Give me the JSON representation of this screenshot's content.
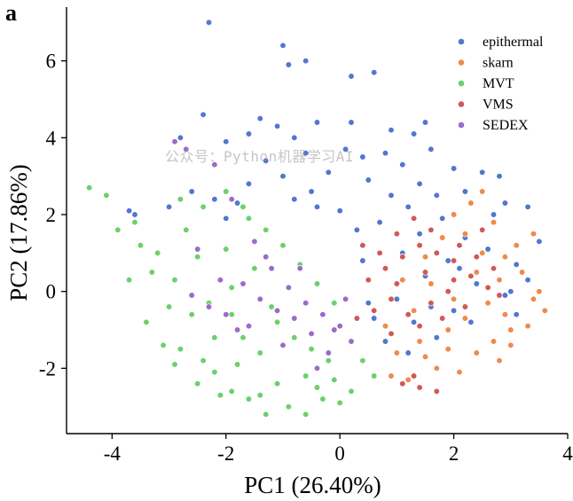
{
  "panel_label": "a",
  "watermark": "公众号：Python机器学习AI",
  "chart_data": {
    "type": "scatter",
    "title": "",
    "xlabel": "PC1 (26.40%)",
    "ylabel": "PC2 (17.86%)",
    "xlim": [
      -4.8,
      4.0
    ],
    "ylim": [
      -3.7,
      7.4
    ],
    "xticks": [
      -4,
      -2,
      0,
      2,
      4
    ],
    "xtick_labels": [
      "-4",
      "-2",
      "0",
      "2",
      "4"
    ],
    "yticks": [
      -2,
      0,
      2,
      4,
      6
    ],
    "ytick_labels": [
      "-2",
      "0",
      "2",
      "4",
      "6"
    ],
    "grid": false,
    "legend_position": "top-right",
    "series": [
      {
        "name": "epithermal",
        "color": "#5078d0",
        "points": [
          [
            -2.3,
            7.0
          ],
          [
            -1.0,
            6.4
          ],
          [
            -0.9,
            5.9
          ],
          [
            -0.6,
            6.0
          ],
          [
            0.2,
            5.6
          ],
          [
            0.6,
            5.7
          ],
          [
            -2.4,
            4.6
          ],
          [
            -1.4,
            4.5
          ],
          [
            -1.1,
            4.3
          ],
          [
            -0.4,
            4.4
          ],
          [
            0.2,
            4.4
          ],
          [
            -2.8,
            4.0
          ],
          [
            -2.0,
            3.9
          ],
          [
            -1.6,
            4.1
          ],
          [
            -0.8,
            4.0
          ],
          [
            0.9,
            4.2
          ],
          [
            1.3,
            4.1
          ],
          [
            1.5,
            4.4
          ],
          [
            -1.3,
            3.4
          ],
          [
            -0.6,
            3.6
          ],
          [
            0.1,
            3.7
          ],
          [
            0.4,
            3.5
          ],
          [
            0.8,
            3.6
          ],
          [
            1.1,
            3.3
          ],
          [
            1.6,
            3.7
          ],
          [
            2.0,
            3.2
          ],
          [
            2.5,
            3.1
          ],
          [
            2.8,
            3.0
          ],
          [
            -0.2,
            3.1
          ],
          [
            -1.0,
            3.0
          ],
          [
            0.5,
            2.9
          ],
          [
            1.4,
            2.8
          ],
          [
            -2.6,
            2.6
          ],
          [
            -2.2,
            2.4
          ],
          [
            -3.0,
            2.2
          ],
          [
            -3.6,
            2.0
          ],
          [
            -3.7,
            2.1
          ],
          [
            -1.8,
            2.3
          ],
          [
            -0.4,
            2.2
          ],
          [
            2.9,
            2.3
          ],
          [
            3.3,
            2.2
          ],
          [
            3.5,
            1.3
          ],
          [
            1.2,
            2.2
          ],
          [
            1.8,
            1.9
          ],
          [
            0.7,
            1.8
          ],
          [
            0.3,
            1.6
          ],
          [
            2.2,
            1.4
          ],
          [
            2.6,
            1.1
          ],
          [
            3.1,
            0.7
          ],
          [
            3.3,
            0.3
          ],
          [
            2.9,
            -0.1
          ],
          [
            3.1,
            -0.6
          ],
          [
            2.3,
            -0.8
          ],
          [
            1.7,
            -1.2
          ],
          [
            1.2,
            -1.6
          ],
          [
            0.8,
            -1.3
          ],
          [
            0.6,
            -0.7
          ],
          [
            1.0,
            -0.2
          ],
          [
            1.5,
            0.4
          ],
          [
            1.9,
            0.8
          ],
          [
            2.4,
            0.2
          ],
          [
            0.4,
            0.8
          ],
          [
            1.1,
            1.0
          ],
          [
            1.6,
            -0.4
          ],
          [
            2.0,
            -0.5
          ],
          [
            -0.5,
            2.6
          ],
          [
            -1.6,
            2.8
          ],
          [
            -2.0,
            1.9
          ],
          [
            0.9,
            2.5
          ],
          [
            1.7,
            2.5
          ],
          [
            2.2,
            2.6
          ],
          [
            0.0,
            2.1
          ],
          [
            -0.8,
            2.4
          ],
          [
            2.7,
            2.0
          ],
          [
            1.3,
            -0.8
          ],
          [
            0.5,
            -0.3
          ],
          [
            2.6,
            -0.3
          ],
          [
            3.0,
            0.0
          ],
          [
            2.1,
            0.6
          ],
          [
            1.4,
            1.5
          ]
        ]
      },
      {
        "name": "skarn",
        "color": "#ef8a4e",
        "points": [
          [
            3.6,
            -0.5
          ],
          [
            3.4,
            -0.2
          ],
          [
            3.2,
            0.5
          ],
          [
            2.9,
            0.9
          ],
          [
            3.0,
            -1.0
          ],
          [
            2.7,
            -1.3
          ],
          [
            2.4,
            -1.6
          ],
          [
            2.1,
            -2.1
          ],
          [
            1.7,
            -2.0
          ],
          [
            1.2,
            -2.3
          ],
          [
            0.9,
            -2.2
          ],
          [
            1.4,
            -1.3
          ],
          [
            1.9,
            -1.0
          ],
          [
            2.2,
            -0.7
          ],
          [
            2.6,
            -0.3
          ],
          [
            2.8,
            0.3
          ],
          [
            2.5,
            1.0
          ],
          [
            2.2,
            1.5
          ],
          [
            1.8,
            1.4
          ],
          [
            1.5,
            0.9
          ],
          [
            1.6,
            0.2
          ],
          [
            2.0,
            -0.2
          ],
          [
            2.9,
            -0.6
          ],
          [
            3.3,
            -0.9
          ],
          [
            3.5,
            0.0
          ],
          [
            2.4,
            0.5
          ],
          [
            1.3,
            -0.5
          ],
          [
            1.1,
            0.3
          ],
          [
            0.8,
            -0.9
          ],
          [
            1.5,
            -1.7
          ],
          [
            2.3,
            2.3
          ],
          [
            2.5,
            2.6
          ],
          [
            2.0,
            2.0
          ],
          [
            3.1,
            1.2
          ],
          [
            3.4,
            1.5
          ],
          [
            2.7,
            1.8
          ],
          [
            1.9,
            -1.5
          ],
          [
            1.0,
            -1.6
          ],
          [
            2.8,
            -1.8
          ],
          [
            3.0,
            -1.4
          ]
        ]
      },
      {
        "name": "MVT",
        "color": "#6cd06c",
        "points": [
          [
            -4.4,
            2.7
          ],
          [
            -4.1,
            2.5
          ],
          [
            -3.9,
            1.6
          ],
          [
            -3.6,
            1.8
          ],
          [
            -3.3,
            0.5
          ],
          [
            -3.0,
            -0.4
          ],
          [
            -2.8,
            -1.5
          ],
          [
            -2.5,
            -2.4
          ],
          [
            -2.2,
            -2.1
          ],
          [
            -1.9,
            -2.6
          ],
          [
            -1.6,
            -2.8
          ],
          [
            -1.3,
            -3.2
          ],
          [
            -0.9,
            -3.0
          ],
          [
            -0.6,
            -3.2
          ],
          [
            -0.3,
            -2.8
          ],
          [
            0.0,
            -2.9
          ],
          [
            0.2,
            -2.6
          ],
          [
            -0.2,
            -1.8
          ],
          [
            -0.6,
            -2.2
          ],
          [
            -1.1,
            -2.4
          ],
          [
            -1.4,
            -1.6
          ],
          [
            -1.8,
            -1.9
          ],
          [
            -2.2,
            -1.2
          ],
          [
            -2.6,
            -0.6
          ],
          [
            -2.9,
            0.3
          ],
          [
            -3.2,
            1.0
          ],
          [
            -2.7,
            1.6
          ],
          [
            -2.4,
            2.2
          ],
          [
            -2.0,
            2.6
          ],
          [
            -1.7,
            2.2
          ],
          [
            -1.3,
            1.6
          ],
          [
            -1.0,
            1.2
          ],
          [
            -0.7,
            0.7
          ],
          [
            -0.4,
            0.2
          ],
          [
            -0.1,
            -0.3
          ],
          [
            -1.5,
            0.6
          ],
          [
            -1.9,
            0.1
          ],
          [
            -2.3,
            -0.3
          ],
          [
            -1.2,
            -0.4
          ],
          [
            -0.8,
            -1.2
          ],
          [
            -2.0,
            1.1
          ],
          [
            -1.6,
            1.9
          ],
          [
            -2.8,
            2.4
          ],
          [
            -3.5,
            1.2
          ],
          [
            -3.7,
            0.3
          ],
          [
            -3.4,
            -0.8
          ],
          [
            -2.9,
            -1.9
          ],
          [
            -2.4,
            -1.8
          ],
          [
            -1.7,
            -1.2
          ],
          [
            -1.1,
            -0.8
          ],
          [
            -0.5,
            -1.5
          ],
          [
            -0.1,
            -2.3
          ],
          [
            0.4,
            -1.8
          ],
          [
            0.6,
            -2.2
          ],
          [
            -3.1,
            -1.4
          ],
          [
            -2.1,
            -2.7
          ],
          [
            -1.4,
            -2.7
          ],
          [
            -0.4,
            -2.5
          ],
          [
            -2.5,
            0.9
          ],
          [
            -1.9,
            -0.6
          ]
        ]
      },
      {
        "name": "VMS",
        "color": "#d35858",
        "points": [
          [
            0.5,
            0.3
          ],
          [
            0.8,
            0.6
          ],
          [
            1.1,
            0.9
          ],
          [
            1.4,
            1.2
          ],
          [
            1.7,
            1.0
          ],
          [
            2.0,
            0.8
          ],
          [
            2.3,
            0.4
          ],
          [
            2.6,
            0.1
          ],
          [
            1.9,
            0.0
          ],
          [
            1.6,
            -0.3
          ],
          [
            1.2,
            -0.6
          ],
          [
            0.9,
            -0.2
          ],
          [
            0.6,
            -0.5
          ],
          [
            0.3,
            -0.7
          ],
          [
            0.7,
            1.0
          ],
          [
            1.0,
            1.5
          ],
          [
            1.3,
            1.9
          ],
          [
            1.6,
            1.6
          ],
          [
            2.1,
            1.2
          ],
          [
            2.4,
            0.9
          ],
          [
            2.7,
            0.6
          ],
          [
            1.4,
            -0.9
          ],
          [
            1.8,
            -0.7
          ],
          [
            2.2,
            -0.4
          ],
          [
            0.9,
            -1.1
          ],
          [
            1.1,
            -2.4
          ],
          [
            1.4,
            -2.5
          ],
          [
            1.7,
            -2.6
          ],
          [
            1.3,
            -2.2
          ],
          [
            2.5,
            1.6
          ],
          [
            0.4,
            1.2
          ],
          [
            1.5,
            0.5
          ],
          [
            2.0,
            0.3
          ],
          [
            1.0,
            0.2
          ],
          [
            2.8,
            -0.1
          ]
        ]
      },
      {
        "name": "SEDEX",
        "color": "#9b6bc7",
        "points": [
          [
            -2.9,
            3.9
          ],
          [
            -2.7,
            3.7
          ],
          [
            -2.2,
            3.3
          ],
          [
            -1.9,
            2.4
          ],
          [
            -1.5,
            1.3
          ],
          [
            -1.2,
            0.6
          ],
          [
            -0.9,
            0.1
          ],
          [
            -0.6,
            -0.3
          ],
          [
            -0.3,
            -0.6
          ],
          [
            0.0,
            -0.9
          ],
          [
            0.2,
            -1.3
          ],
          [
            -0.2,
            -1.6
          ],
          [
            -0.5,
            -1.1
          ],
          [
            -0.8,
            -0.7
          ],
          [
            -1.1,
            -0.5
          ],
          [
            -1.4,
            -0.2
          ],
          [
            -1.7,
            0.2
          ],
          [
            -2.0,
            -0.6
          ],
          [
            -2.3,
            -0.4
          ],
          [
            -2.6,
            -0.1
          ],
          [
            -1.0,
            -1.4
          ],
          [
            -0.4,
            -2.0
          ],
          [
            0.1,
            -0.2
          ],
          [
            -0.7,
            0.6
          ],
          [
            -1.3,
            0.9
          ],
          [
            -2.1,
            0.3
          ],
          [
            -1.8,
            -1.0
          ],
          [
            -2.5,
            1.1
          ],
          [
            -0.1,
            -1.0
          ],
          [
            -1.6,
            -0.9
          ]
        ]
      }
    ]
  }
}
